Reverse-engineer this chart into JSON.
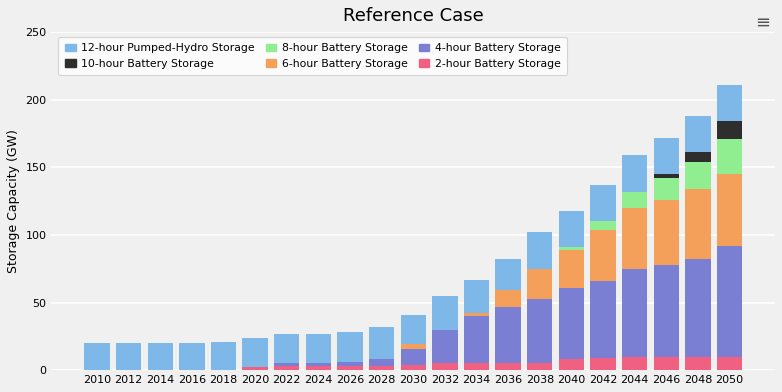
{
  "title": "Reference Case",
  "ylabel": "Storage Capacity (GW)",
  "years": [
    2010,
    2012,
    2014,
    2016,
    2018,
    2020,
    2022,
    2024,
    2026,
    2028,
    2030,
    2032,
    2034,
    2036,
    2038,
    2040,
    2042,
    2044,
    2046,
    2048,
    2050
  ],
  "series": {
    "2-hour Battery Storage": [
      0,
      0,
      0,
      0,
      0,
      2,
      3,
      3,
      3,
      3,
      4,
      5,
      5,
      5,
      5,
      8,
      9,
      10,
      10,
      10,
      10
    ],
    "4-hour Battery Storage": [
      0,
      0,
      0,
      0,
      0,
      0,
      2,
      2,
      3,
      5,
      12,
      25,
      35,
      42,
      48,
      53,
      57,
      65,
      68,
      72,
      82
    ],
    "6-hour Battery Storage": [
      0,
      0,
      0,
      0,
      0,
      0,
      0,
      0,
      0,
      0,
      3,
      0,
      2,
      12,
      22,
      28,
      38,
      45,
      48,
      52,
      53
    ],
    "8-hour Battery Storage": [
      0,
      0,
      0,
      0,
      0,
      0,
      0,
      0,
      0,
      0,
      0,
      0,
      0,
      0,
      0,
      2,
      6,
      12,
      16,
      20,
      26
    ],
    "10-hour Battery Storage": [
      0,
      0,
      0,
      0,
      0,
      0,
      0,
      0,
      0,
      0,
      0,
      0,
      0,
      0,
      0,
      0,
      0,
      0,
      3,
      7,
      13
    ],
    "12-hour Pumped-Hydro Storage": [
      20,
      20,
      20,
      20,
      21,
      22,
      22,
      22,
      22,
      24,
      22,
      25,
      25,
      23,
      27,
      27,
      27,
      27,
      27,
      27,
      27
    ]
  },
  "colors": {
    "12-hour Pumped-Hydro Storage": "#7EB8E8",
    "10-hour Battery Storage": "#2E2E2E",
    "8-hour Battery Storage": "#90EE90",
    "6-hour Battery Storage": "#F5A05A",
    "4-hour Battery Storage": "#7B7FD4",
    "2-hour Battery Storage": "#F06080"
  },
  "ylim": [
    0,
    250
  ],
  "yticks": [
    0,
    50,
    100,
    150,
    200,
    250
  ],
  "background_color": "#F0F0F0",
  "grid_color": "#FFFFFF",
  "bar_width": 1.6,
  "legend_order": [
    "12-hour Pumped-Hydro Storage",
    "10-hour Battery Storage",
    "8-hour Battery Storage",
    "6-hour Battery Storage",
    "4-hour Battery Storage",
    "2-hour Battery Storage"
  ],
  "stack_order": [
    "2-hour Battery Storage",
    "4-hour Battery Storage",
    "6-hour Battery Storage",
    "8-hour Battery Storage",
    "10-hour Battery Storage",
    "12-hour Pumped-Hydro Storage"
  ]
}
